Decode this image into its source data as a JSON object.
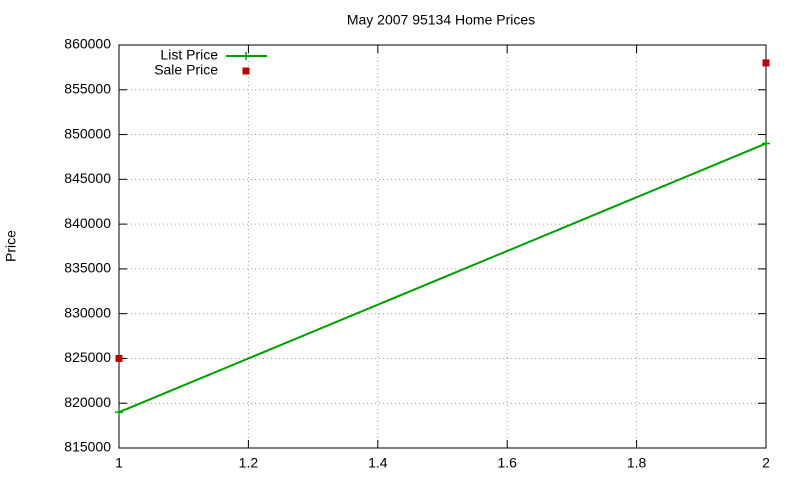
{
  "chart_data": {
    "type": "line",
    "title": "May 2007 95134 Home Prices",
    "y_label": "Price",
    "x": [
      1,
      2
    ],
    "series": [
      {
        "name": "List Price",
        "color": "#00a000",
        "style": "linespoints",
        "values": [
          819000,
          849000
        ]
      },
      {
        "name": "Sale Price",
        "color": "#c00000",
        "style": "points",
        "values": [
          825000,
          858000
        ]
      }
    ],
    "xlim": [
      1,
      2
    ],
    "xticks": [
      1,
      1.2,
      1.4,
      1.6,
      1.8,
      2
    ],
    "ylim": [
      815000,
      860000
    ],
    "yticks": [
      815000,
      820000,
      825000,
      830000,
      835000,
      840000,
      845000,
      850000,
      855000,
      860000
    ],
    "grid": true,
    "legend": "top-left"
  }
}
